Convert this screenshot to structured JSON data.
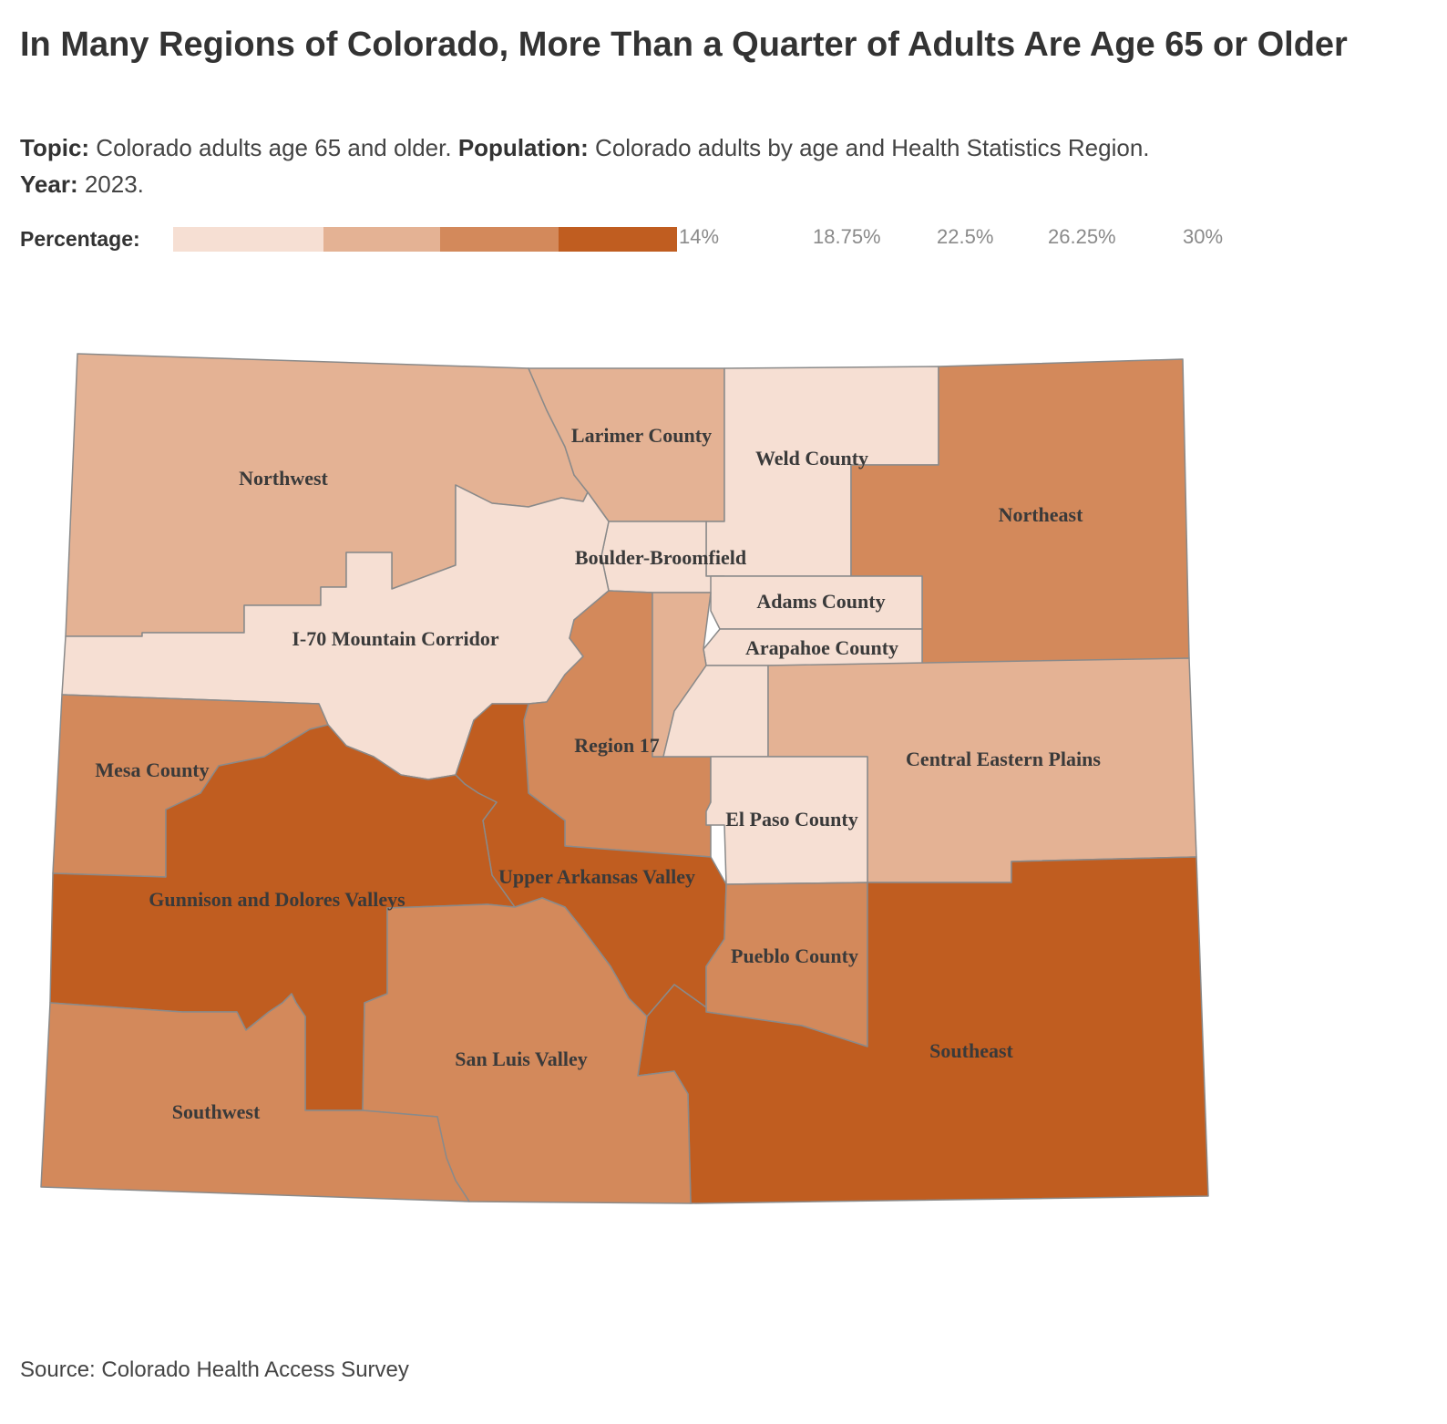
{
  "title": "In Many Regions of Colorado, More Than a Quarter of Adults Are Age 65 or Older",
  "subtitle": {
    "topic_label": "Topic:",
    "topic_text": "Colorado adults age 65 and older.",
    "population_label": "Population:",
    "population_text": "Colorado adults by age and Health Statistics Region.",
    "year_label": "Year:",
    "year_text": "2023."
  },
  "legend": {
    "label": "Percentage:",
    "ticks": [
      "14%",
      "18.75%",
      "22.5%",
      "26.25%",
      "30%"
    ],
    "colors": [
      "#f6dfd3",
      "#e4b294",
      "#d3895b",
      "#c05d20"
    ]
  },
  "regions": [
    {
      "name": "Northwest",
      "class": 2
    },
    {
      "name": "Larimer County",
      "class": 2
    },
    {
      "name": "Weld County",
      "class": 1
    },
    {
      "name": "Northeast",
      "class": 3
    },
    {
      "name": "Boulder-Broomfield",
      "class": 1
    },
    {
      "name": "I-70 Mountain Corridor",
      "class": 1
    },
    {
      "name": "Adams County",
      "class": 1
    },
    {
      "name": "Arapahoe County",
      "class": 1
    },
    {
      "name": "Region 17",
      "class": 3
    },
    {
      "name": "Central Eastern Plains",
      "class": 2
    },
    {
      "name": "Mesa County",
      "class": 3
    },
    {
      "name": "El Paso County",
      "class": 1
    },
    {
      "name": "Upper Arkansas Valley",
      "class": 4
    },
    {
      "name": "Gunnison and Dolores Valleys",
      "class": 4
    },
    {
      "name": "Pueblo County",
      "class": 3
    },
    {
      "name": "Southeast",
      "class": 4
    },
    {
      "name": "San Luis Valley",
      "class": 3
    },
    {
      "name": "Southwest",
      "class": 3
    }
  ],
  "source": "Source: Colorado Health Access Survey"
}
